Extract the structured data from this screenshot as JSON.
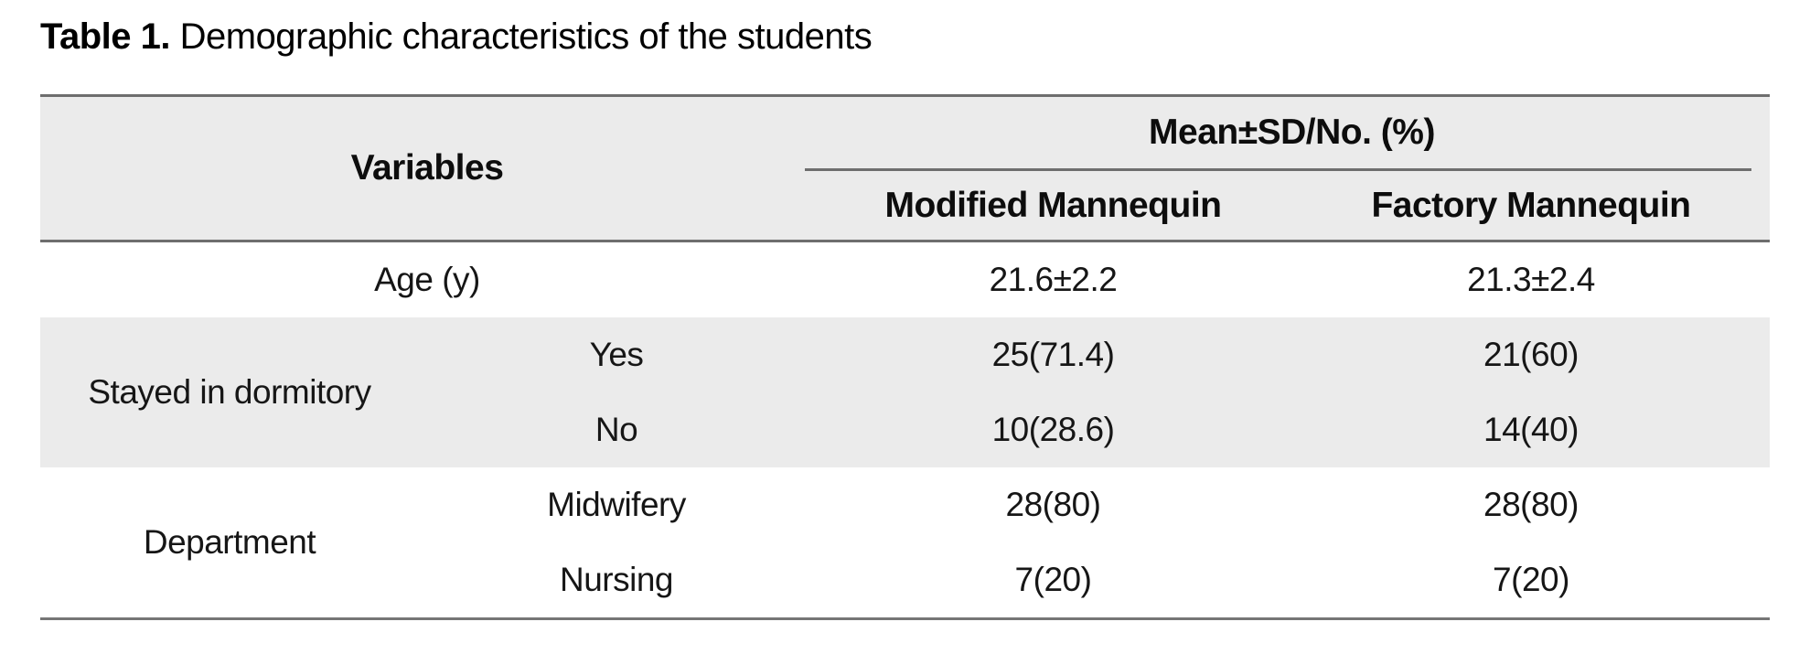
{
  "caption": {
    "label": "Table 1.",
    "text": "Demographic characteristics of the students"
  },
  "table": {
    "header": {
      "variables": "Variables",
      "measure_span": "Mean±SD/No. (%)",
      "modified": "Modified Mannequin",
      "factory": "Factory Mannequin"
    },
    "rows": {
      "age": {
        "label": "Age (y)",
        "modified": "21.6±2.2",
        "factory": "21.3±2.4"
      },
      "dormitory": {
        "label": "Stayed in dormitory",
        "items": [
          {
            "label": "Yes",
            "modified": "25(71.4)",
            "factory": "21(60)"
          },
          {
            "label": "No",
            "modified": "10(28.6)",
            "factory": "14(40)"
          }
        ]
      },
      "department": {
        "label": "Department",
        "items": [
          {
            "label": "Midwifery",
            "modified": "28(80)",
            "factory": "28(80)"
          },
          {
            "label": "Nursing",
            "modified": "7(20)",
            "factory": "7(20)"
          }
        ]
      }
    },
    "colors": {
      "row_shade": "#ebebeb",
      "rule": "#6e6e6e",
      "text": "#161616",
      "background": "#ffffff"
    }
  }
}
